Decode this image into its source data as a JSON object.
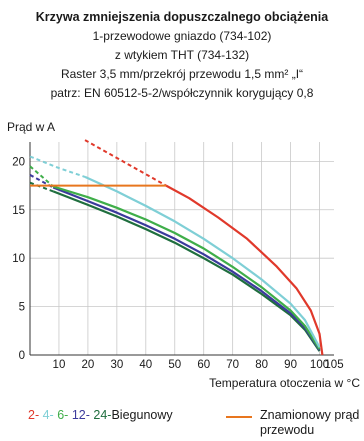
{
  "title": "Krzywa zmniejszenia dopuszczalnego obciążenia",
  "subtitle_lines": [
    "1-przewodowe gniazdo (734-102)",
    "z wtykiem THT (734-132)",
    "Raster 3,5 mm/przekrój przewodu 1,5 mm² „I“",
    "patrz: EN 60512-5-2/współczynnik korygujący 0,8"
  ],
  "legend": {
    "poles": [
      {
        "label": "2-",
        "color": "#e0392b"
      },
      {
        "label": "4-",
        "color": "#7fcfd6"
      },
      {
        "label": "6-",
        "color": "#3fae49"
      },
      {
        "label": "12-",
        "color": "#3b3a9c"
      },
      {
        "label": "24-",
        "color": "#1f6e3e"
      }
    ],
    "poles_suffix": "Biegunowy",
    "rated_current_label": "Znamionowy prąd przewodu",
    "rated_current_color": "#e8761e"
  },
  "chart_data": {
    "type": "line",
    "ylabel": "Prąd w A",
    "xlabel": "Temperatura otoczenia w °C",
    "xlim": [
      0,
      105
    ],
    "ylim": [
      0,
      22
    ],
    "x_ticks": [
      10,
      20,
      30,
      40,
      50,
      60,
      70,
      80,
      90,
      100,
      105
    ],
    "y_ticks": [
      0,
      5,
      10,
      15,
      20
    ],
    "grid": true,
    "legend_position": "bottom",
    "rated_current": {
      "name": "Znamionowy prąd przewodu",
      "color": "#e8761e",
      "points": [
        [
          0,
          17.5
        ],
        [
          47,
          17.5
        ]
      ]
    },
    "series": [
      {
        "name": "2-",
        "color": "#e0392b",
        "dashed": [
          [
            19,
            22.2
          ],
          [
            47,
            17.5
          ]
        ],
        "points": [
          [
            47,
            17.5
          ],
          [
            55,
            16.2
          ],
          [
            65,
            14.2
          ],
          [
            75,
            12.0
          ],
          [
            85,
            9.2
          ],
          [
            92,
            6.9
          ],
          [
            97,
            4.6
          ],
          [
            100,
            2.2
          ],
          [
            101,
            0
          ]
        ]
      },
      {
        "name": "4-",
        "color": "#7fcfd6",
        "dashed": [
          [
            0,
            20.5
          ],
          [
            10,
            19.3
          ],
          [
            19,
            18.4
          ]
        ],
        "points": [
          [
            19,
            18.4
          ],
          [
            30,
            16.9
          ],
          [
            40,
            15.4
          ],
          [
            50,
            13.8
          ],
          [
            60,
            12.0
          ],
          [
            70,
            10.0
          ],
          [
            80,
            7.8
          ],
          [
            90,
            5.3
          ],
          [
            95,
            3.6
          ],
          [
            100,
            0.8
          ]
        ]
      },
      {
        "name": "6-",
        "color": "#3fae49",
        "dashed": [
          [
            0,
            19.5
          ],
          [
            8,
            17.4
          ]
        ],
        "points": [
          [
            8,
            17.4
          ],
          [
            20,
            16.3
          ],
          [
            30,
            15.2
          ],
          [
            40,
            14.0
          ],
          [
            50,
            12.6
          ],
          [
            60,
            11.0
          ],
          [
            70,
            9.1
          ],
          [
            80,
            7.0
          ],
          [
            90,
            4.6
          ],
          [
            95,
            3.0
          ],
          [
            100,
            0.6
          ]
        ]
      },
      {
        "name": "12-",
        "color": "#3b3a9c",
        "dashed": [
          [
            0,
            18.6
          ],
          [
            8,
            17.3
          ]
        ],
        "points": [
          [
            8,
            17.3
          ],
          [
            20,
            15.9
          ],
          [
            30,
            14.7
          ],
          [
            40,
            13.4
          ],
          [
            50,
            12.0
          ],
          [
            60,
            10.4
          ],
          [
            70,
            8.6
          ],
          [
            80,
            6.6
          ],
          [
            90,
            4.3
          ],
          [
            95,
            2.8
          ],
          [
            100,
            0.5
          ]
        ]
      },
      {
        "name": "24-",
        "color": "#1f6e3e",
        "dashed": [
          [
            0,
            17.8
          ],
          [
            8,
            16.9
          ]
        ],
        "points": [
          [
            8,
            16.9
          ],
          [
            20,
            15.5
          ],
          [
            30,
            14.3
          ],
          [
            40,
            13.0
          ],
          [
            50,
            11.6
          ],
          [
            60,
            10.0
          ],
          [
            70,
            8.3
          ],
          [
            80,
            6.3
          ],
          [
            90,
            4.1
          ],
          [
            95,
            2.6
          ],
          [
            100,
            0.4
          ]
        ]
      }
    ]
  }
}
